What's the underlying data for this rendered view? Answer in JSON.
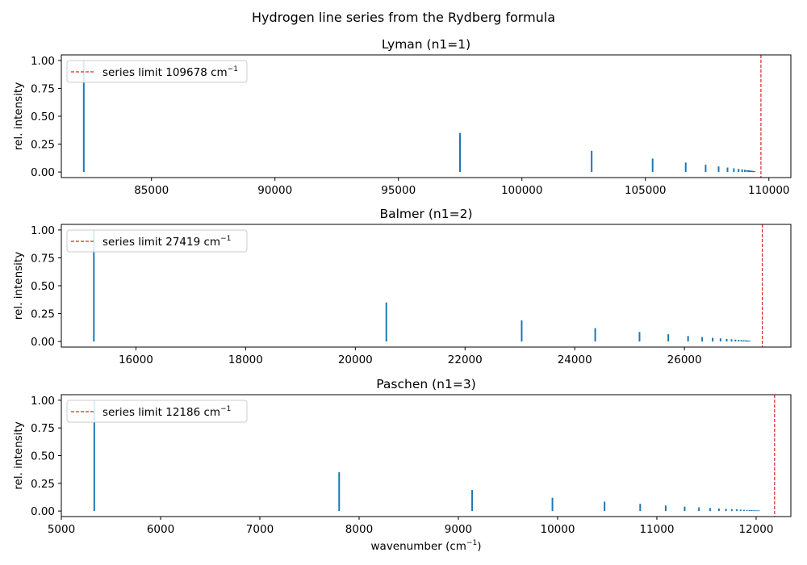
{
  "figure": {
    "suptitle": "Hydrogen line series from the Rydberg formula",
    "colors": {
      "lines": "#1f77b4",
      "limit": "#d62728",
      "axes": "#000000",
      "background": "#ffffff"
    }
  },
  "chart_data": [
    {
      "type": "bar",
      "title": "Lyman (n1=1)",
      "xlabel": "",
      "ylabel": "rel. intensity",
      "xlim": [
        81350,
        110890
      ],
      "ylim": [
        -0.05,
        1.05
      ],
      "xticks": [
        85000,
        90000,
        95000,
        100000,
        105000,
        110000
      ],
      "xtick_labels": [
        "85000",
        "90000",
        "95000",
        "100000",
        "105000",
        "110000"
      ],
      "yticks": [
        0.0,
        0.25,
        0.5,
        0.75,
        1.0
      ],
      "ytick_labels": [
        "0.00",
        "0.25",
        "0.50",
        "0.75",
        "1.00"
      ],
      "legend": {
        "location": "upper left",
        "label": "series limit 109678 cm",
        "superscript": "−1"
      },
      "series_limit": 109678,
      "lines": {
        "x": [
          82259,
          97492,
          102824,
          105292,
          106632,
          107440,
          107965,
          108325,
          108582,
          108773,
          108917,
          109029,
          109117,
          109189,
          109247,
          109296,
          109336,
          109370,
          109399,
          109424
        ],
        "y": [
          1.0,
          0.35,
          0.19,
          0.12,
          0.085,
          0.065,
          0.05,
          0.04,
          0.033,
          0.028,
          0.023,
          0.02,
          0.017,
          0.015,
          0.013,
          0.011,
          0.01,
          0.009,
          0.008,
          0.007
        ]
      }
    },
    {
      "type": "bar",
      "title": "Balmer (n1=2)",
      "xlabel": "",
      "ylabel": "rel. intensity",
      "xlim": [
        14640,
        27940
      ],
      "ylim": [
        -0.05,
        1.05
      ],
      "xticks": [
        16000,
        18000,
        20000,
        22000,
        24000,
        26000
      ],
      "xtick_labels": [
        "16000",
        "18000",
        "20000",
        "22000",
        "24000",
        "26000"
      ],
      "yticks": [
        0.0,
        0.25,
        0.5,
        0.75,
        1.0
      ],
      "ytick_labels": [
        "0.00",
        "0.25",
        "0.50",
        "0.75",
        "1.00"
      ],
      "legend": {
        "location": "upper left",
        "label": "series limit 27419 cm",
        "superscript": "−1"
      },
      "series_limit": 27419,
      "lines": {
        "x": [
          15233,
          20565,
          23033,
          24373,
          25181,
          25706,
          26066,
          26323,
          26514,
          26658,
          26770,
          26858,
          26930,
          26988,
          27037,
          27077,
          27111,
          27140,
          27165,
          27187
        ],
        "y": [
          1.0,
          0.35,
          0.19,
          0.12,
          0.085,
          0.065,
          0.05,
          0.04,
          0.033,
          0.028,
          0.023,
          0.02,
          0.017,
          0.015,
          0.013,
          0.011,
          0.01,
          0.009,
          0.008,
          0.007
        ]
      }
    },
    {
      "type": "bar",
      "title": "Paschen (n1=3)",
      "xlabel": "wavenumber (cm",
      "xlabel_superscript": "−1",
      "xlabel_suffix": ")",
      "ylabel": "rel. intensity",
      "xlim": [
        5000,
        12350
      ],
      "ylim": [
        -0.05,
        1.05
      ],
      "xticks": [
        5000,
        6000,
        7000,
        8000,
        9000,
        10000,
        11000,
        12000
      ],
      "xtick_labels": [
        "5000",
        "6000",
        "7000",
        "8000",
        "9000",
        "10000",
        "11000",
        "12000"
      ],
      "yticks": [
        0.0,
        0.25,
        0.5,
        0.75,
        1.0
      ],
      "ytick_labels": [
        "0.00",
        "0.25",
        "0.50",
        "0.75",
        "1.00"
      ],
      "legend": {
        "location": "upper left",
        "label": "series limit 12186 cm",
        "superscript": "−1"
      },
      "series_limit": 12186,
      "lines": {
        "x": [
          5332,
          7799,
          9139,
          9948,
          10473,
          10832,
          11089,
          11280,
          11424,
          11536,
          11625,
          11696,
          11755,
          11804,
          11844,
          11878,
          11907,
          11932,
          11954,
          11973,
          11990,
          12005,
          12018,
          12030
        ],
        "y": [
          1.0,
          0.35,
          0.19,
          0.12,
          0.085,
          0.065,
          0.05,
          0.04,
          0.033,
          0.028,
          0.023,
          0.02,
          0.017,
          0.015,
          0.013,
          0.011,
          0.01,
          0.009,
          0.008,
          0.007,
          0.006,
          0.006,
          0.005,
          0.005
        ]
      }
    }
  ]
}
